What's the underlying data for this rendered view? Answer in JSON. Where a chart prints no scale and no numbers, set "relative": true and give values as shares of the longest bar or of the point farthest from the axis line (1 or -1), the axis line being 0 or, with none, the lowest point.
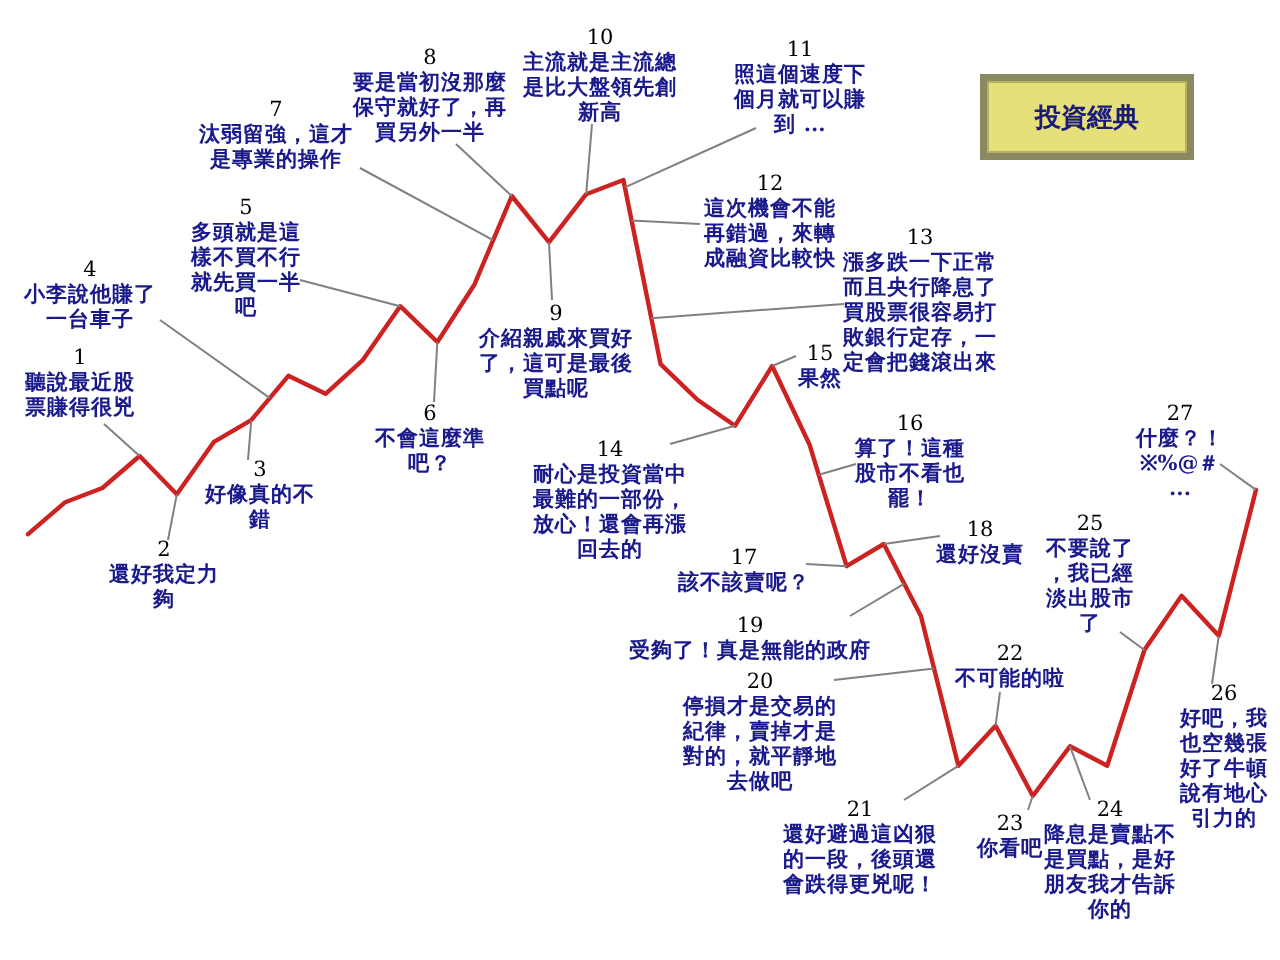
{
  "chart_data": {
    "type": "line",
    "title": "投資經典",
    "relative": true,
    "color": "#cc2222",
    "marker": "none",
    "categories": [
      null,
      null,
      null,
      null,
      null,
      null,
      null,
      null,
      null,
      null,
      null,
      null,
      null,
      null,
      null,
      null,
      null,
      null,
      null,
      null,
      null,
      null,
      null,
      null,
      null,
      null,
      null,
      null,
      null,
      null,
      null,
      null,
      null,
      null
    ],
    "values": [
      0.425,
      0.477,
      0.5,
      0.552,
      0.49,
      0.575,
      0.61,
      0.682,
      0.653,
      0.708,
      0.795,
      0.737,
      0.831,
      0.974,
      0.899,
      0.977,
      1,
      0.701,
      0.643,
      0.601,
      0.698,
      0.571,
      0.373,
      0.409,
      0.292,
      0.049,
      0.114,
      0,
      0.081,
      0.049,
      0.237,
      0.325,
      0.26,
      0.497
    ],
    "annotations": [
      "1 聽說最近股票賺得很兇",
      "2 還好我定力夠",
      "3 好像真的不錯",
      "4 小李說他賺了一台車子",
      "5 多頭就是這樣不買不行就先買一半吧",
      "6 不會這麼準吧？",
      "7 汰弱留強，這才是專業的操作",
      "8 要是當初沒那麼保守就好了，再買另外一半",
      "9 介紹親戚來買好了，這可是最後買點呢",
      "10 主流就是主流總是比大盤領先創新高",
      "11 照這個速度下個月就可以賺到 ...",
      "12 這次機會不能再錯過，來轉成融資比較快",
      "13 漲多跌一下正常而且央行降息了買股票很容易打敗銀行定存，一定會把錢滾出來",
      "14 耐心是投資當中最難的一部份，放心！還會再漲回去的",
      "15 果然",
      "16 算了！這種股市不看也罷！",
      "17 該不該賣呢？",
      "18 還好沒賣",
      "19 受夠了！真是無能的政府",
      "20 停損才是交易的紀律，賣掉才是對的，就平靜地去做吧",
      "21 還好避過這凶狠的一段，後頭還會跌得更兇呢！",
      "22 不可能的啦",
      "23 你看吧",
      "24 降息是賣點不是買點，是好朋友我才告訴你的",
      "25 不要說了，我已經淡出股市了",
      "26 好吧，我也空幾張好了牛頓說有地心引力的",
      "27 什麼？！※%@＃..."
    ]
  }
}
